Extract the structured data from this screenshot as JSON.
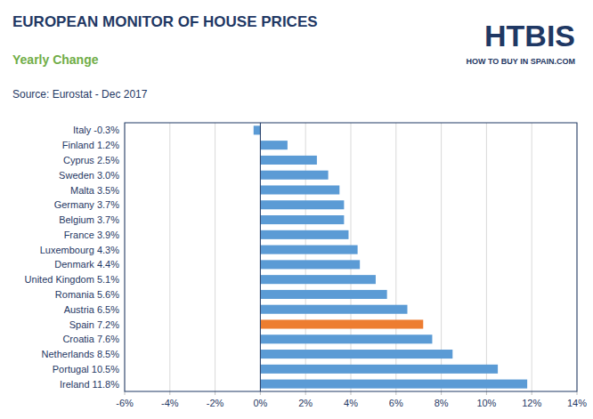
{
  "chart_data": {
    "type": "bar",
    "orientation": "horizontal",
    "title": "EUROPEAN MONITOR OF HOUSE PRICES",
    "subtitle": "Yearly Change",
    "source": "Source: Eurostat - Dec 2017",
    "annotations": [
      "HTBIS",
      "HOW TO BUY IN SPAIN.COM"
    ],
    "categories": [
      "Ireland  11.8%",
      "Portugal  10.5%",
      "Netherlands  8.5%",
      "Croatia  7.6%",
      "Spain  7.2%",
      "Austria  6.5%",
      "Romania  5.6%",
      "United Kingdom  5.1%",
      "Denmark  4.4%",
      "Luxembourg  4.3%",
      "France  3.9%",
      "Belgium  3.7%",
      "Germany  3.7%",
      "Malta  3.5%",
      "Sweden  3.0%",
      "Cyprus  2.5%",
      "Finland  1.2%",
      "Italy  -0.3%"
    ],
    "values": [
      11.8,
      10.5,
      8.5,
      7.6,
      7.2,
      6.5,
      5.6,
      5.1,
      4.4,
      4.3,
      3.9,
      3.7,
      3.7,
      3.5,
      3.0,
      2.5,
      1.2,
      -0.3
    ],
    "colors": [
      "#5b9bd5",
      "#5b9bd5",
      "#5b9bd5",
      "#5b9bd5",
      "#ed7d31",
      "#5b9bd5",
      "#5b9bd5",
      "#5b9bd5",
      "#5b9bd5",
      "#5b9bd5",
      "#5b9bd5",
      "#5b9bd5",
      "#5b9bd5",
      "#5b9bd5",
      "#5b9bd5",
      "#5b9bd5",
      "#5b9bd5",
      "#5b9bd5"
    ],
    "xlim": [
      -6,
      14
    ],
    "xticks": [
      {
        "value": -6,
        "label": "-6%"
      },
      {
        "value": -4,
        "label": "-4%"
      },
      {
        "value": -2,
        "label": "-2%"
      },
      {
        "value": 0,
        "label": "0%"
      },
      {
        "value": 2,
        "label": "2%"
      },
      {
        "value": 4,
        "label": "4%"
      },
      {
        "value": 6,
        "label": "6%"
      },
      {
        "value": 8,
        "label": "8%"
      },
      {
        "value": 10,
        "label": "10%"
      },
      {
        "value": 12,
        "label": "12%"
      },
      {
        "value": 14,
        "label": "14%"
      }
    ],
    "grid": true
  }
}
